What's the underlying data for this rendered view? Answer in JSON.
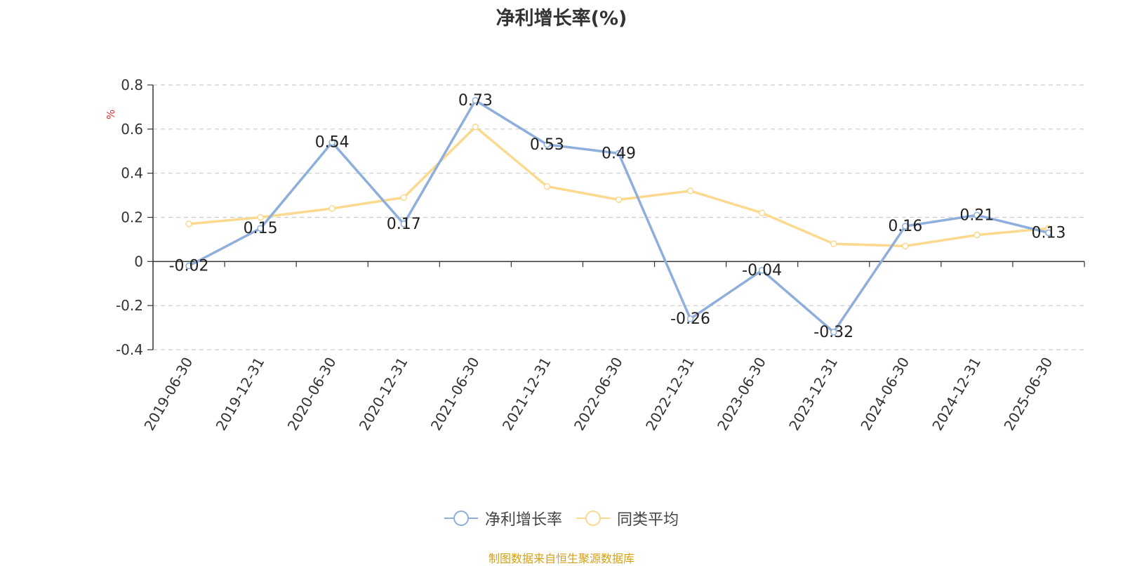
{
  "colors": {
    "series1": "#8eaedb",
    "series2": "#fbd98e",
    "title": "#333333",
    "axis": "#333333",
    "grid": "#cccccc",
    "unit": "#e03030",
    "source": "#d4a017"
  },
  "source_text": "制图数据来自恒生聚源数据库",
  "chart_data": {
    "type": "line",
    "title": "净利增长率(%)",
    "ylabel": "%",
    "xlabel": "",
    "ylim": [
      -0.4,
      0.8
    ],
    "yticks": [
      "0.8",
      "0.6",
      "0.4",
      "0.2",
      "0",
      "-0.2",
      "-0.4"
    ],
    "ytick_values": [
      0.8,
      0.6,
      0.4,
      0.2,
      0,
      -0.2,
      -0.4
    ],
    "grid": true,
    "legend_position": "bottom",
    "categories": [
      "2019-06-30",
      "2019-12-31",
      "2020-06-30",
      "2020-12-31",
      "2021-06-30",
      "2021-12-31",
      "2022-06-30",
      "2022-12-31",
      "2023-06-30",
      "2023-12-31",
      "2024-06-30",
      "2024-12-31",
      "2025-06-30"
    ],
    "series": [
      {
        "name": "净利增长率",
        "values": [
          -0.02,
          0.15,
          0.54,
          0.17,
          0.73,
          0.53,
          0.49,
          -0.26,
          -0.04,
          -0.32,
          0.16,
          0.21,
          0.13
        ],
        "labels": [
          "-0.02",
          "0.15",
          "0.54",
          "0.17",
          "0.73",
          "0.53",
          "0.49",
          "-0.26",
          "-0.04",
          "-0.32",
          "0.16",
          "0.21",
          "0.13"
        ]
      },
      {
        "name": "同类平均",
        "values": [
          0.17,
          0.2,
          0.24,
          0.29,
          0.61,
          0.34,
          0.28,
          0.32,
          0.22,
          0.08,
          0.07,
          0.12,
          0.15
        ]
      }
    ]
  }
}
